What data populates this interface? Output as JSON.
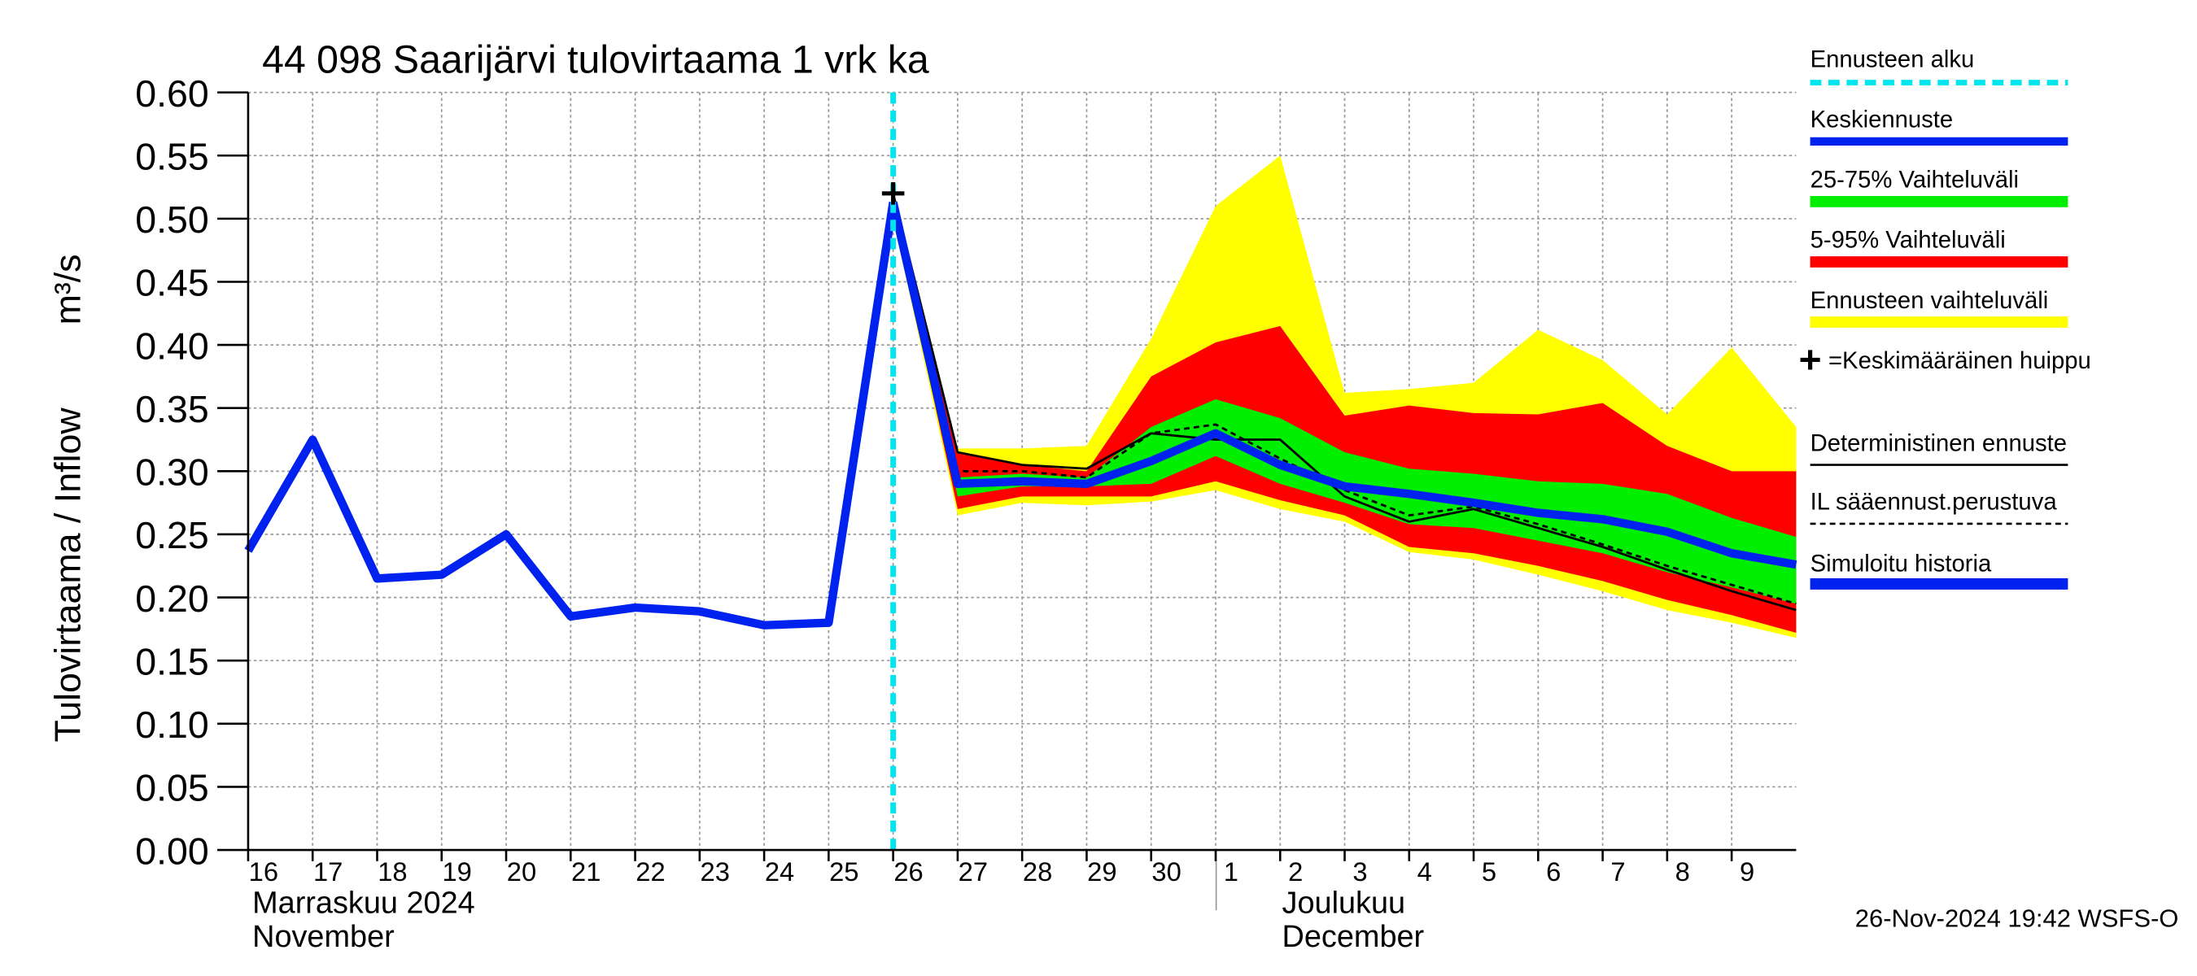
{
  "chart_data": {
    "type": "line",
    "title": "44 098 Saarijärvi tulovirtaama 1 vrk ka",
    "y_label": "Tulovirtaama / Inflow",
    "y_unit": "m³/s",
    "xlim": [
      0,
      24
    ],
    "xticks": [
      {
        "value": 0,
        "label": "16"
      },
      {
        "value": 1,
        "label": "17"
      },
      {
        "value": 2,
        "label": "18"
      },
      {
        "value": 3,
        "label": "19"
      },
      {
        "value": 4,
        "label": "20"
      },
      {
        "value": 5,
        "label": "21"
      },
      {
        "value": 6,
        "label": "22"
      },
      {
        "value": 7,
        "label": "23"
      },
      {
        "value": 8,
        "label": "24"
      },
      {
        "value": 9,
        "label": "25"
      },
      {
        "value": 10,
        "label": "26"
      },
      {
        "value": 11,
        "label": "27"
      },
      {
        "value": 12,
        "label": "28"
      },
      {
        "value": 13,
        "label": "29"
      },
      {
        "value": 14,
        "label": "30"
      },
      {
        "value": 15,
        "label": "1"
      },
      {
        "value": 16,
        "label": "2"
      },
      {
        "value": 17,
        "label": "3"
      },
      {
        "value": 18,
        "label": "4"
      },
      {
        "value": 19,
        "label": "5"
      },
      {
        "value": 20,
        "label": "6"
      },
      {
        "value": 21,
        "label": "7"
      },
      {
        "value": 22,
        "label": "8"
      },
      {
        "value": 23,
        "label": "9"
      }
    ],
    "ylim": [
      0,
      0.6
    ],
    "yticks": [
      {
        "value": 0,
        "label": "0.00"
      },
      {
        "value": 0.05,
        "label": "0.05"
      },
      {
        "value": 0.1,
        "label": "0.10"
      },
      {
        "value": 0.15,
        "label": "0.15"
      },
      {
        "value": 0.2,
        "label": "0.20"
      },
      {
        "value": 0.25,
        "label": "0.25"
      },
      {
        "value": 0.3,
        "label": "0.30"
      },
      {
        "value": 0.35,
        "label": "0.35"
      },
      {
        "value": 0.4,
        "label": "0.40"
      },
      {
        "value": 0.45,
        "label": "0.45"
      },
      {
        "value": 0.5,
        "label": "0.50"
      },
      {
        "value": 0.55,
        "label": "0.55"
      },
      {
        "value": 0.6,
        "label": "0.60"
      }
    ],
    "grid": true,
    "months": [
      {
        "name": "Marraskuu 2024",
        "english": "November"
      },
      {
        "name": "Joulukuu",
        "english": "December"
      }
    ],
    "forecast_start": {
      "name": "Ennusteen alku",
      "x": 10,
      "color": "#00e5ee"
    },
    "peak": {
      "name": "=Keskimääräinen huippu",
      "x": 10,
      "y": 0.52,
      "color": "#000000"
    },
    "series": [
      {
        "name": "Ennusteen vaihteluväli",
        "kind": "band",
        "color": "#ffff00",
        "x": [
          10,
          11,
          12,
          13,
          14,
          15,
          16,
          17,
          18,
          19,
          20,
          21,
          22,
          23,
          24
        ],
        "values": [
          0.52,
          0.318,
          0.318,
          0.32,
          0.405,
          0.51,
          0.55,
          0.362,
          0.365,
          0.37,
          0.412,
          0.388,
          0.345,
          0.398,
          0.335
        ],
        "lower": [
          0.5,
          0.265,
          0.275,
          0.273,
          0.276,
          0.285,
          0.27,
          0.26,
          0.236,
          0.23,
          0.218,
          0.205,
          0.19,
          0.18,
          0.168
        ]
      },
      {
        "name": "5-95% Vaihteluväli",
        "kind": "band",
        "color": "#ff0000",
        "x": [
          10,
          11,
          12,
          13,
          14,
          15,
          16,
          17,
          18,
          19,
          20,
          21,
          22,
          23,
          24
        ],
        "values": [
          0.52,
          0.315,
          0.305,
          0.3,
          0.375,
          0.402,
          0.415,
          0.344,
          0.352,
          0.346,
          0.345,
          0.354,
          0.32,
          0.3,
          0.3
        ],
        "lower": [
          0.505,
          0.27,
          0.28,
          0.28,
          0.28,
          0.292,
          0.277,
          0.265,
          0.24,
          0.235,
          0.225,
          0.213,
          0.198,
          0.186,
          0.172
        ]
      },
      {
        "name": "25-75% Vaihteluväli",
        "kind": "band",
        "color": "#00ee00",
        "x": [
          10,
          11,
          12,
          13,
          14,
          15,
          16,
          17,
          18,
          19,
          20,
          21,
          22,
          23,
          24
        ],
        "values": [
          0.515,
          0.295,
          0.298,
          0.295,
          0.335,
          0.357,
          0.342,
          0.315,
          0.302,
          0.298,
          0.292,
          0.29,
          0.282,
          0.263,
          0.248
        ],
        "lower": [
          0.51,
          0.28,
          0.288,
          0.288,
          0.29,
          0.312,
          0.29,
          0.275,
          0.258,
          0.255,
          0.245,
          0.235,
          0.22,
          0.208,
          0.195
        ]
      },
      {
        "name": "Deterministinen ennuste",
        "kind": "thin",
        "color": "#000000",
        "x": [
          10,
          11,
          12,
          13,
          14,
          15,
          16,
          17,
          18,
          19,
          20,
          21,
          22,
          23,
          24
        ],
        "values": [
          0.52,
          0.315,
          0.305,
          0.302,
          0.33,
          0.325,
          0.325,
          0.28,
          0.26,
          0.27,
          0.255,
          0.24,
          0.222,
          0.205,
          0.19
        ]
      },
      {
        "name": "IL sääennust.perustuva",
        "kind": "dashed",
        "color": "#000000",
        "x": [
          10,
          11,
          12,
          13,
          14,
          15,
          16,
          17,
          18,
          19,
          20,
          21,
          22,
          23,
          24
        ],
        "values": [
          0.515,
          0.3,
          0.3,
          0.295,
          0.33,
          0.337,
          0.31,
          0.285,
          0.265,
          0.272,
          0.258,
          0.242,
          0.225,
          0.21,
          0.195
        ]
      },
      {
        "name": "Keskiennuste",
        "kind": "thick",
        "color": "#0022ee",
        "x": [
          10,
          11,
          12,
          13,
          14,
          15,
          16,
          17,
          18,
          19,
          20,
          21,
          22,
          23,
          24
        ],
        "values": [
          0.513,
          0.29,
          0.292,
          0.29,
          0.308,
          0.33,
          0.305,
          0.288,
          0.282,
          0.275,
          0.267,
          0.262,
          0.252,
          0.235,
          0.226
        ]
      },
      {
        "name": "Simuloitu historia",
        "kind": "thick",
        "color": "#0022ee",
        "x": [
          0,
          1,
          2,
          3,
          4,
          5,
          6,
          7,
          8,
          9,
          10
        ],
        "values": [
          0.237,
          0.325,
          0.215,
          0.218,
          0.25,
          0.185,
          0.192,
          0.189,
          0.178,
          0.18,
          0.513
        ]
      }
    ],
    "footer": "26-Nov-2024 19:42 WSFS-O"
  }
}
